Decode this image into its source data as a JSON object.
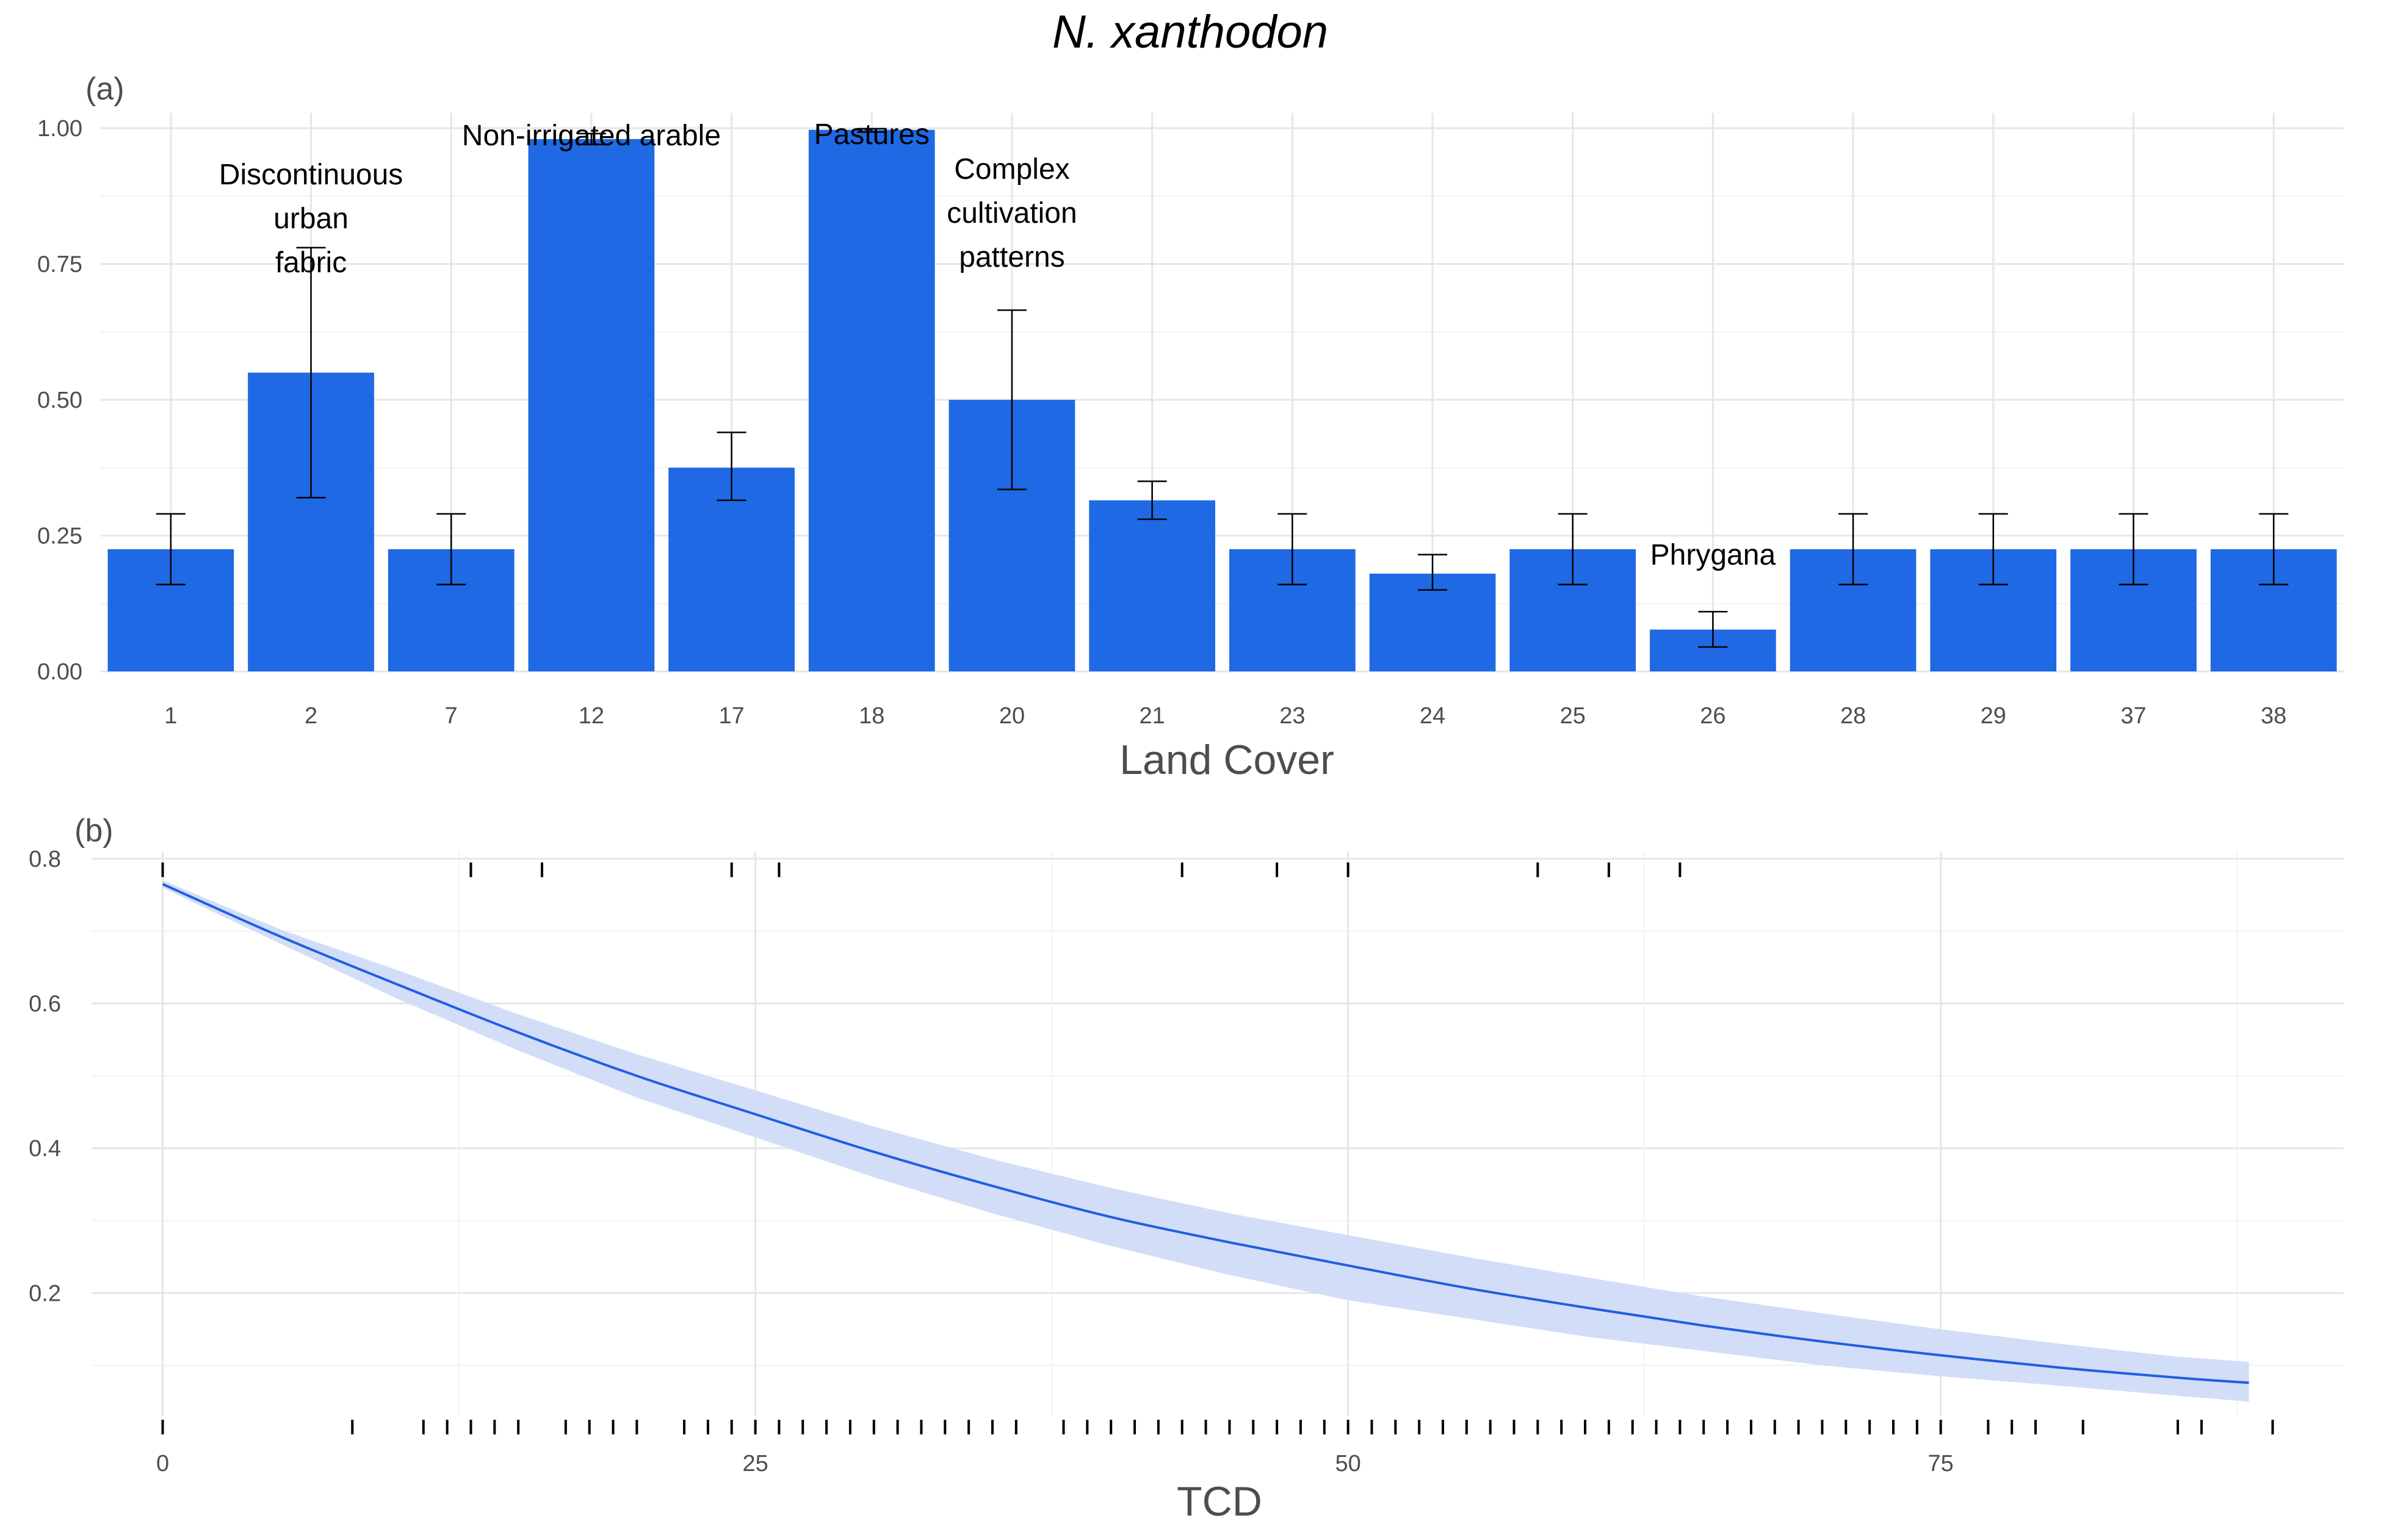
{
  "figure_title": "N. xanthodon",
  "chart_data": [
    {
      "panel": "(a)",
      "type": "bar",
      "xlabel": "Land Cover",
      "ylabel": "",
      "ylim": [
        0,
        1
      ],
      "yticks": [
        "0.00",
        "0.25",
        "0.50",
        "0.75",
        "1.00"
      ],
      "ytick_values": [
        0,
        0.25,
        0.5,
        0.75,
        1.0
      ],
      "bar_color": "#1f69e4",
      "categories": [
        "1",
        "2",
        "7",
        "12",
        "17",
        "18",
        "20",
        "21",
        "23",
        "24",
        "25",
        "26",
        "28",
        "29",
        "37",
        "38"
      ],
      "values": [
        0.225,
        0.55,
        0.225,
        0.98,
        0.375,
        0.997,
        0.5,
        0.315,
        0.225,
        0.18,
        0.225,
        0.077,
        0.225,
        0.225,
        0.225,
        0.225
      ],
      "lower": [
        0.16,
        0.32,
        0.16,
        0.97,
        0.315,
        0.993,
        0.335,
        0.28,
        0.16,
        0.15,
        0.16,
        0.045,
        0.16,
        0.16,
        0.16,
        0.16
      ],
      "upper": [
        0.29,
        0.78,
        0.29,
        0.99,
        0.44,
        0.999,
        0.665,
        0.35,
        0.29,
        0.215,
        0.29,
        0.11,
        0.29,
        0.29,
        0.29,
        0.29
      ],
      "annotations": [
        {
          "category": "2",
          "lines": [
            "Discontinuous",
            "urban",
            "fabric"
          ]
        },
        {
          "category": "12",
          "lines": [
            "Non-irrigated arable"
          ]
        },
        {
          "category": "18",
          "lines": [
            "Pastures"
          ]
        },
        {
          "category": "20",
          "lines": [
            "Complex",
            "cultivation",
            "patterns"
          ]
        },
        {
          "category": "26",
          "lines": [
            "Phrygana"
          ]
        }
      ]
    },
    {
      "panel": "(b)",
      "type": "line",
      "xlabel": "TCD",
      "ylabel": "",
      "xlim": [
        -3,
        92
      ],
      "ylim": [
        0.03,
        0.81
      ],
      "xticks": [
        "0",
        "25",
        "50",
        "75"
      ],
      "xtick_values": [
        0,
        25,
        50,
        75
      ],
      "yticks": [
        "0.2",
        "0.4",
        "0.6",
        "0.8"
      ],
      "ytick_values": [
        0.2,
        0.4,
        0.6,
        0.8
      ],
      "line_color": "#1f5fe0",
      "band_color": "#d2ddf8",
      "x": [
        0,
        5,
        10,
        15,
        20,
        25,
        30,
        35,
        40,
        45,
        50,
        55,
        60,
        65,
        70,
        75,
        80,
        85,
        88
      ],
      "y": [
        0.765,
        0.692,
        0.625,
        0.56,
        0.5,
        0.447,
        0.395,
        0.348,
        0.305,
        0.27,
        0.238,
        0.207,
        0.18,
        0.155,
        0.133,
        0.114,
        0.097,
        0.083,
        0.076
      ],
      "lower": [
        0.76,
        0.682,
        0.605,
        0.535,
        0.47,
        0.415,
        0.36,
        0.31,
        0.265,
        0.225,
        0.19,
        0.165,
        0.14,
        0.12,
        0.1,
        0.085,
        0.072,
        0.058,
        0.05
      ],
      "upper": [
        0.77,
        0.702,
        0.645,
        0.585,
        0.53,
        0.48,
        0.43,
        0.385,
        0.345,
        0.31,
        0.28,
        0.25,
        0.222,
        0.195,
        0.172,
        0.15,
        0.13,
        0.112,
        0.105
      ],
      "rug_top": [
        0,
        13,
        16,
        24,
        26,
        43,
        47,
        50,
        58,
        61,
        64
      ],
      "rug_bottom": [
        0,
        8,
        11,
        12,
        13,
        14,
        15,
        17,
        18,
        19,
        20,
        22,
        23,
        24,
        25,
        26,
        27,
        28,
        29,
        30,
        31,
        32,
        33,
        34,
        35,
        36,
        38,
        39,
        40,
        41,
        42,
        43,
        44,
        45,
        46,
        47,
        48,
        49,
        50,
        51,
        52,
        53,
        54,
        55,
        56,
        57,
        58,
        59,
        60,
        61,
        62,
        63,
        64,
        65,
        66,
        67,
        68,
        69,
        70,
        71,
        72,
        73,
        74,
        75,
        77,
        78,
        79,
        81,
        85,
        86,
        89
      ]
    }
  ]
}
